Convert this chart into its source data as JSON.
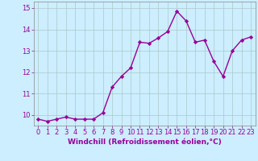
{
  "x": [
    0,
    1,
    2,
    3,
    4,
    5,
    6,
    7,
    8,
    9,
    10,
    11,
    12,
    13,
    14,
    15,
    16,
    17,
    18,
    19,
    20,
    21,
    22,
    23
  ],
  "y": [
    9.8,
    9.7,
    9.8,
    9.9,
    9.8,
    9.8,
    9.8,
    10.1,
    11.3,
    11.8,
    12.2,
    13.4,
    13.35,
    13.6,
    13.9,
    14.85,
    14.4,
    13.4,
    13.5,
    12.5,
    11.8,
    13.0,
    13.5,
    13.65
  ],
  "line_color": "#990099",
  "marker": "D",
  "marker_size": 2.2,
  "bg_color": "#cceeff",
  "grid_color": "#aac8c8",
  "xlabel": "Windchill (Refroidissement éolien,°C)",
  "xlabel_color": "#990099",
  "xlabel_fontsize": 6.5,
  "tick_color": "#990099",
  "tick_fontsize": 6,
  "ylim": [
    9.5,
    15.3
  ],
  "yticks": [
    10,
    11,
    12,
    13,
    14,
    15
  ],
  "xticks": [
    0,
    1,
    2,
    3,
    4,
    5,
    6,
    7,
    8,
    9,
    10,
    11,
    12,
    13,
    14,
    15,
    16,
    17,
    18,
    19,
    20,
    21,
    22,
    23
  ],
  "line_width": 1.0,
  "xlim": [
    -0.5,
    23.5
  ]
}
